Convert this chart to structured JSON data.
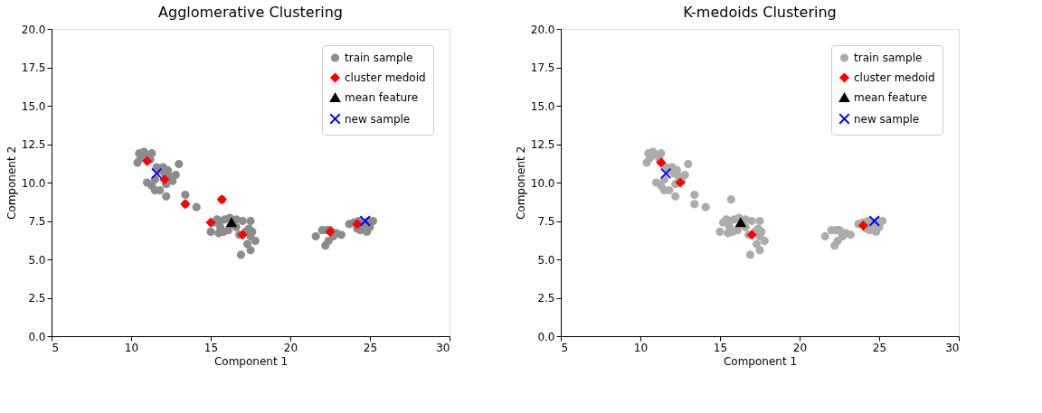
{
  "chart_data": [
    {
      "type": "scatter",
      "title": "Agglomerative Clustering",
      "xlabel": "Component 1",
      "ylabel": "Component 2",
      "xlim": [
        5,
        30
      ],
      "xticks": [
        5,
        10,
        15,
        20,
        25,
        30
      ],
      "ylim": [
        0,
        20
      ],
      "yticks": [
        {
          "value": 0,
          "label": "0.0"
        },
        2.5,
        {
          "value": 5,
          "label": "5.0"
        },
        7.5,
        {
          "value": 10,
          "label": "10.0"
        },
        12.5,
        {
          "value": 15,
          "label": "15.0"
        },
        17.5,
        {
          "value": 20,
          "label": "20.0"
        }
      ],
      "legend": "top right",
      "series": [
        {
          "name": "train sample",
          "color": "#8c8c8c",
          "marker": "circle",
          "x": [
            10.5,
            10.8,
            11.0,
            11.3,
            10.4,
            10.6,
            11.2,
            11.6,
            11.8,
            12.1,
            12.3,
            12.4,
            12.6,
            12.2,
            11.5,
            11.3,
            11.5,
            11.8,
            11.0,
            12.8,
            12.0,
            13.0,
            12.2,
            13.4,
            13.4,
            14.1,
            15.7,
            15.2,
            15.4,
            15.6,
            15.9,
            16.2,
            16.6,
            17.0,
            17.5,
            15.0,
            15.5,
            15.8,
            16.1,
            16.6,
            17.2,
            17.5,
            17.8,
            17.3,
            17.5,
            16.9,
            17.6,
            16.8,
            15.6,
            17.4,
            21.6,
            22.0,
            22.3,
            22.6,
            22.9,
            23.2,
            22.4,
            22.2,
            22.7,
            22.5,
            23.7,
            24.0,
            24.3,
            24.6,
            24.9,
            25.2,
            24.4,
            24.8,
            24.2,
            25.0
          ],
          "values": [
            11.9,
            12.0,
            11.8,
            11.9,
            11.3,
            11.6,
            11.5,
            11.0,
            10.8,
            10.6,
            10.8,
            10.4,
            10.1,
            9.9,
            10.2,
            9.8,
            9.5,
            9.5,
            10.0,
            10.5,
            11.0,
            11.2,
            9.1,
            9.2,
            8.6,
            8.4,
            8.9,
            7.4,
            7.6,
            7.5,
            7.6,
            7.7,
            7.6,
            7.5,
            7.5,
            6.8,
            6.7,
            6.8,
            6.9,
            7.1,
            6.8,
            6.5,
            6.2,
            6.0,
            5.6,
            5.3,
            6.8,
            6.6,
            7.1,
            7.0,
            6.5,
            6.9,
            6.9,
            6.8,
            6.7,
            6.6,
            6.2,
            5.9,
            6.5,
            6.9,
            7.3,
            7.4,
            7.5,
            7.3,
            7.5,
            7.5,
            6.9,
            6.8,
            7.0,
            7.1
          ]
        },
        {
          "name": "cluster medoid",
          "color": "#ff0000",
          "marker": "diamond",
          "x": [
            11.0,
            12.1,
            13.4,
            15.7,
            15.0,
            17.0,
            22.5,
            24.2
          ],
          "values": [
            11.4,
            10.2,
            8.6,
            8.9,
            7.4,
            6.6,
            6.8,
            7.3
          ]
        },
        {
          "name": "mean feature",
          "color": "#000000",
          "marker": "triangle",
          "x": [
            16.3
          ],
          "values": [
            7.4
          ]
        },
        {
          "name": "new sample",
          "color": "#0000ff",
          "marker": "cross",
          "x": [
            11.6,
            24.7
          ],
          "values": [
            10.6,
            7.5
          ]
        }
      ]
    },
    {
      "type": "scatter",
      "title": "K-medoids Clustering",
      "xlabel": "Component 1",
      "ylabel": "Component 2",
      "xlim": [
        5,
        30
      ],
      "xticks": [
        5,
        10,
        15,
        20,
        25,
        30
      ],
      "ylim": [
        0,
        20
      ],
      "yticks": [
        {
          "value": 0,
          "label": "0.0"
        },
        2.5,
        {
          "value": 5,
          "label": "5.0"
        },
        7.5,
        {
          "value": 10,
          "label": "10.0"
        },
        12.5,
        {
          "value": 15,
          "label": "15.0"
        },
        17.5,
        {
          "value": 20,
          "label": "20.0"
        }
      ],
      "legend": "top right",
      "series": [
        {
          "name": "train sample",
          "color": "#acacac",
          "marker": "circle",
          "x": [
            10.5,
            10.8,
            11.0,
            11.3,
            10.4,
            10.6,
            11.2,
            11.6,
            11.8,
            12.1,
            12.3,
            12.4,
            12.6,
            12.2,
            11.5,
            11.3,
            11.5,
            11.8,
            11.0,
            12.8,
            12.0,
            13.0,
            12.2,
            13.4,
            13.4,
            14.1,
            15.7,
            15.2,
            15.4,
            15.6,
            15.9,
            16.2,
            16.6,
            17.0,
            17.5,
            15.0,
            15.5,
            15.8,
            16.1,
            16.6,
            17.2,
            17.5,
            17.8,
            17.3,
            17.5,
            16.9,
            17.6,
            16.8,
            15.6,
            17.4,
            21.6,
            22.0,
            22.3,
            22.6,
            22.9,
            23.2,
            22.4,
            22.2,
            22.7,
            22.5,
            23.7,
            24.0,
            24.3,
            24.6,
            24.9,
            25.2,
            24.4,
            24.8,
            24.2,
            25.0
          ],
          "values": [
            11.9,
            12.0,
            11.8,
            11.9,
            11.3,
            11.6,
            11.5,
            11.0,
            10.8,
            10.6,
            10.8,
            10.4,
            10.1,
            9.9,
            10.2,
            9.8,
            9.5,
            9.5,
            10.0,
            10.5,
            11.0,
            11.2,
            9.1,
            9.2,
            8.6,
            8.4,
            8.9,
            7.4,
            7.6,
            7.5,
            7.6,
            7.7,
            7.6,
            7.5,
            7.5,
            6.8,
            6.7,
            6.8,
            6.9,
            7.1,
            6.8,
            6.5,
            6.2,
            6.0,
            5.6,
            5.3,
            6.8,
            6.6,
            7.1,
            7.0,
            6.5,
            6.9,
            6.9,
            6.8,
            6.7,
            6.6,
            6.2,
            5.9,
            6.5,
            6.9,
            7.3,
            7.4,
            7.5,
            7.3,
            7.5,
            7.5,
            6.9,
            6.8,
            7.0,
            7.1
          ]
        },
        {
          "name": "cluster medoid",
          "color": "#ff0000",
          "marker": "diamond",
          "x": [
            11.3,
            12.5,
            17.0,
            24.0
          ],
          "values": [
            11.3,
            10.0,
            6.6,
            7.2
          ]
        },
        {
          "name": "mean feature",
          "color": "#000000",
          "marker": "triangle",
          "x": [
            16.3
          ],
          "values": [
            7.4
          ]
        },
        {
          "name": "new sample",
          "color": "#0000ff",
          "marker": "cross",
          "x": [
            11.6,
            24.7
          ],
          "values": [
            10.6,
            7.5
          ]
        }
      ]
    }
  ]
}
